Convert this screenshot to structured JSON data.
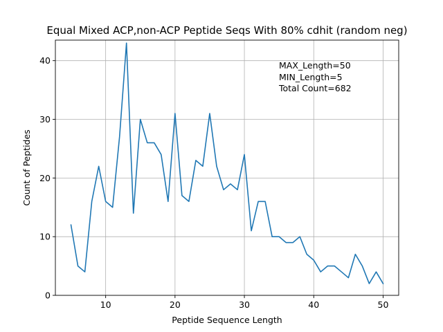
{
  "chart_data": {
    "type": "line",
    "title": "Equal Mixed ACP,non-ACP Peptide Seqs With 80% cdhit (random neg)",
    "xlabel": "Peptide Sequence Length",
    "ylabel": "Count of Peptides",
    "xlim": [
      2.75,
      52.25
    ],
    "ylim": [
      0,
      43.5
    ],
    "xticks": [
      10,
      20,
      30,
      40,
      50
    ],
    "yticks": [
      0,
      10,
      20,
      30,
      40
    ],
    "grid": true,
    "annotations": [
      "MAX_Length=50",
      "MIN_Length=5",
      "Total Count=682"
    ],
    "series": [
      {
        "color": "#1f77b4",
        "x": [
          5,
          6,
          7,
          8,
          9,
          10,
          11,
          12,
          13,
          14,
          15,
          16,
          17,
          18,
          19,
          20,
          21,
          22,
          23,
          24,
          25,
          26,
          27,
          28,
          29,
          30,
          31,
          32,
          33,
          34,
          35,
          36,
          37,
          38,
          39,
          40,
          41,
          42,
          43,
          44,
          45,
          46,
          47,
          48,
          49,
          50
        ],
        "values": [
          12,
          5,
          4,
          16,
          22,
          16,
          15,
          27,
          43,
          14,
          30,
          26,
          26,
          24,
          16,
          31,
          17,
          16,
          23,
          22,
          31,
          22,
          18,
          19,
          18,
          24,
          11,
          16,
          16,
          10,
          10,
          9,
          9,
          10,
          7,
          6,
          4,
          5,
          5,
          4,
          3,
          7,
          5,
          2,
          4,
          2
        ]
      }
    ]
  }
}
